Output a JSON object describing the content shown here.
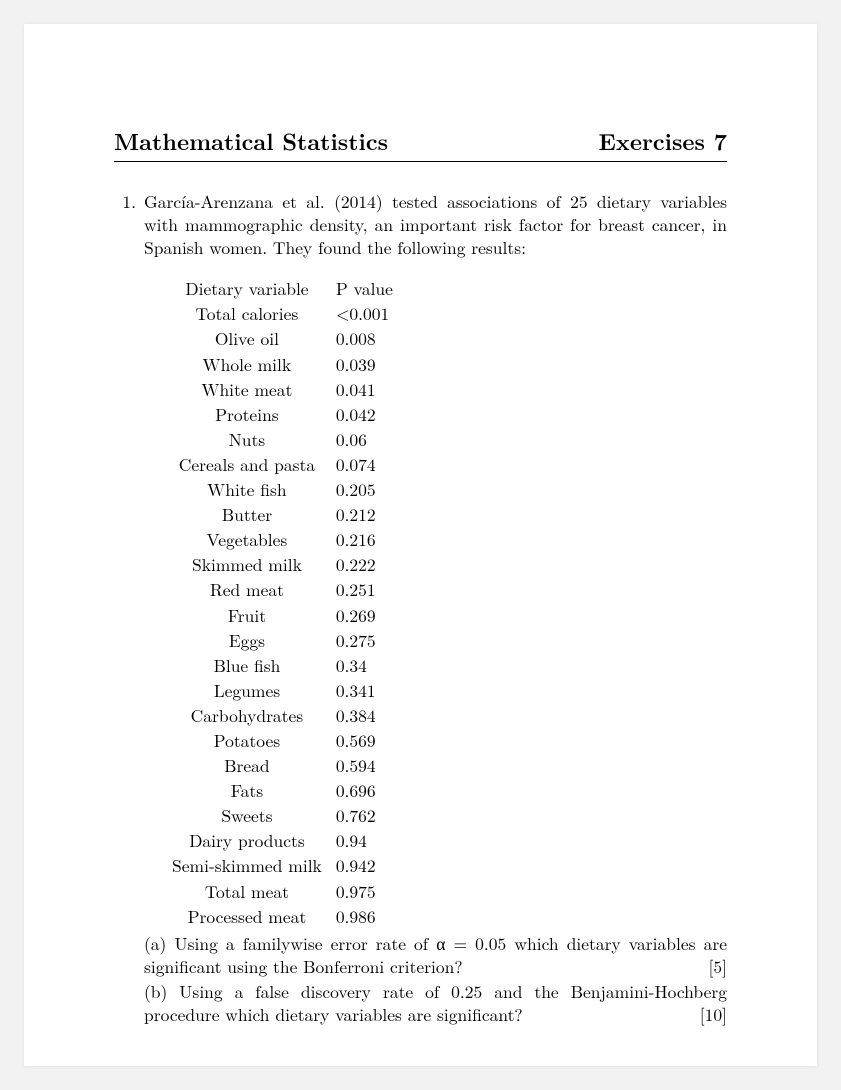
{
  "header": {
    "left": "Mathematical Statistics",
    "right": "Exercises 7"
  },
  "problem": {
    "number": "1.",
    "intro": "García-Arenzana et al. (2014) tested associations of 25 dietary variables with mammographic density, an important risk factor for breast cancer, in Spanish women. They found the following results:"
  },
  "table": {
    "col1": "Dietary variable",
    "col2": "P value",
    "rows": [
      {
        "var": "Total calories",
        "p": "<0.001"
      },
      {
        "var": "Olive oil",
        "p": "0.008"
      },
      {
        "var": "Whole milk",
        "p": "0.039"
      },
      {
        "var": "White meat",
        "p": "0.041"
      },
      {
        "var": "Proteins",
        "p": "0.042"
      },
      {
        "var": "Nuts",
        "p": "0.06"
      },
      {
        "var": "Cereals and pasta",
        "p": "0.074"
      },
      {
        "var": "White fish",
        "p": "0.205"
      },
      {
        "var": "Butter",
        "p": "0.212"
      },
      {
        "var": "Vegetables",
        "p": "0.216"
      },
      {
        "var": "Skimmed milk",
        "p": "0.222"
      },
      {
        "var": "Red meat",
        "p": "0.251"
      },
      {
        "var": "Fruit",
        "p": "0.269"
      },
      {
        "var": "Eggs",
        "p": "0.275"
      },
      {
        "var": "Blue fish",
        "p": "0.34"
      },
      {
        "var": "Legumes",
        "p": "0.341"
      },
      {
        "var": "Carbohydrates",
        "p": "0.384"
      },
      {
        "var": "Potatoes",
        "p": "0.569"
      },
      {
        "var": "Bread",
        "p": "0.594"
      },
      {
        "var": "Fats",
        "p": "0.696"
      },
      {
        "var": "Sweets",
        "p": "0.762"
      },
      {
        "var": "Dairy products",
        "p": "0.94"
      },
      {
        "var": "Semi-skimmed milk",
        "p": "0.942"
      },
      {
        "var": "Total meat",
        "p": "0.975"
      },
      {
        "var": "Processed meat",
        "p": "0.986"
      }
    ]
  },
  "parts": {
    "a": {
      "label": "(a) ",
      "text": "Using a familywise error rate of α = 0.05 which dietary variables are significant using the Bonferroni criterion?",
      "marks": "[5]"
    },
    "b": {
      "label": "(b) ",
      "text": "Using a false discovery rate of 0.25 and the Benjamini-Hochberg procedure which dietary variables are significant?",
      "marks": "[10]"
    }
  }
}
